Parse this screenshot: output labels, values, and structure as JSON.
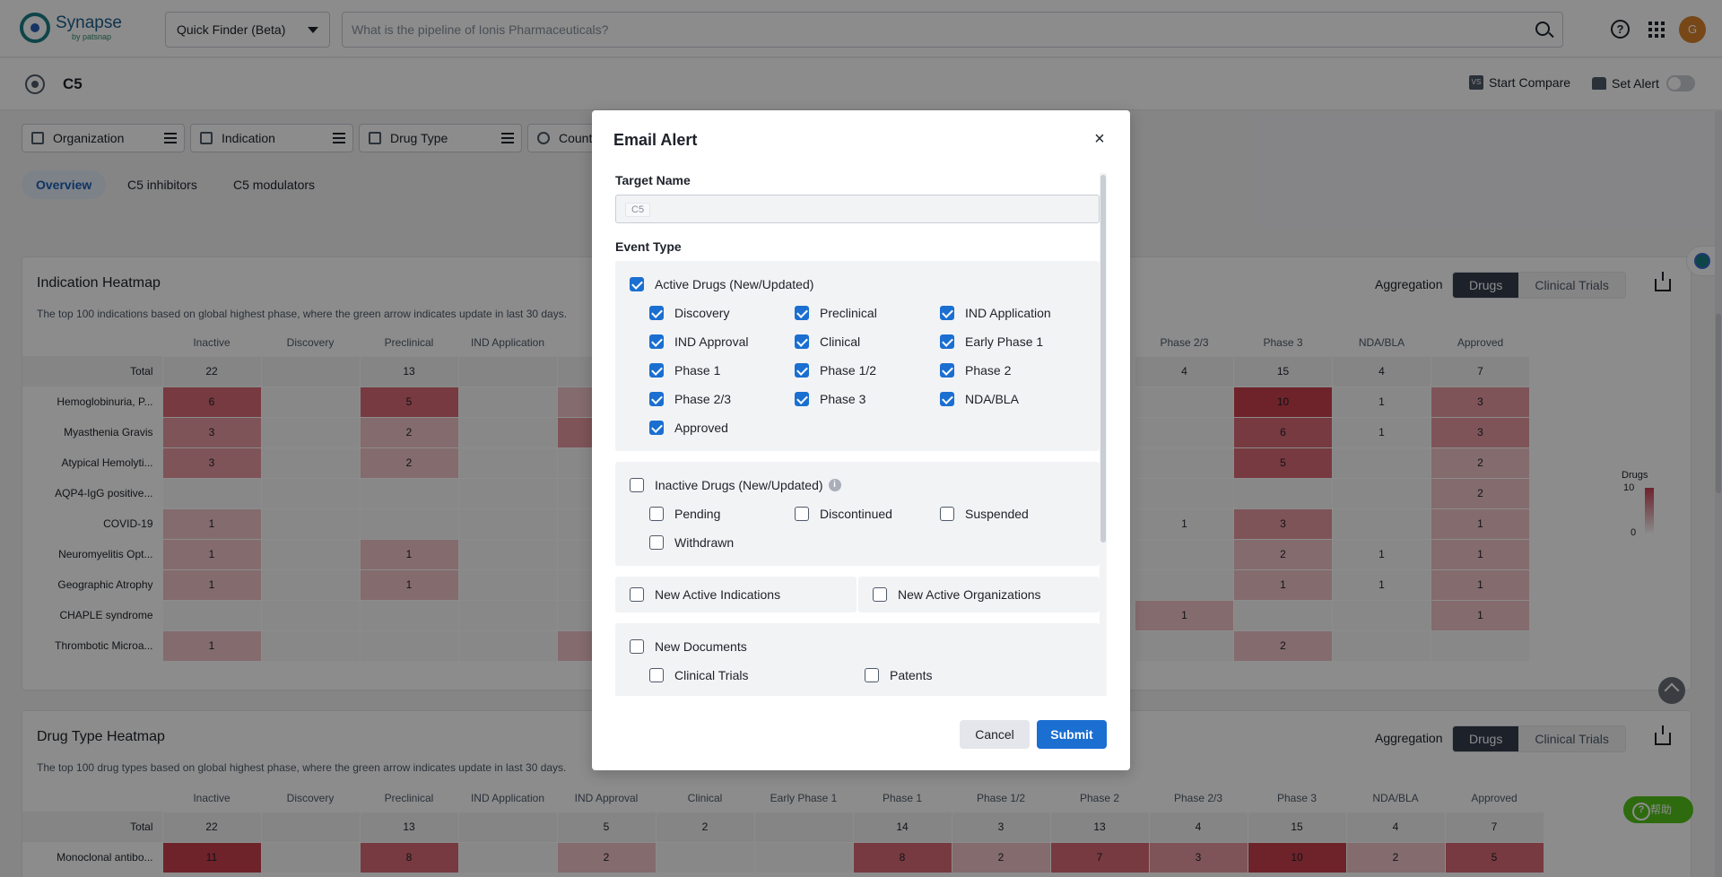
{
  "app": {
    "name": "Synapse",
    "sub": "by patsnap"
  },
  "header": {
    "finder_label": "Quick Finder (Beta)",
    "search_placeholder": "What is the pipeline of Ionis Pharmaceuticals?",
    "avatar_initial": "G"
  },
  "target": {
    "title": "C5",
    "start_compare": "Start Compare",
    "set_alert": "Set Alert",
    "compare_badge": "VS"
  },
  "filters": [
    "Organization",
    "Indication",
    "Drug Type",
    "Country/Location"
  ],
  "tabs": [
    "Overview",
    "C5 inhibitors",
    "C5 modulators"
  ],
  "indication_heatmap": {
    "title": "Indication Heatmap",
    "description": "The top 100 indications based on global highest phase, where the green arrow indicates update in last 30 days.",
    "aggregation_label": "Aggregation",
    "toggle": [
      "Drugs",
      "Clinical Trials"
    ],
    "columns": [
      "Inactive",
      "Discovery",
      "Preclinical",
      "IND Application",
      "IND Approval",
      "Clinical",
      "Early Phase 1",
      "Phase 1",
      "Phase 1/2",
      "Phase 2",
      "Phase 2/3",
      "Phase 3",
      "NDA/BLA",
      "Approved"
    ],
    "visible_col_labels": [
      "Inactive",
      "Discovery",
      "Preclinical",
      "IND Application",
      "IND",
      "Phase 2/3",
      "Phase 3",
      "NDA/BLA",
      "Approved"
    ],
    "rows": [
      {
        "label": "Total",
        "left": [
          "22",
          "",
          "13",
          "",
          ""
        ],
        "right": [
          "4",
          "15",
          "4",
          "7"
        ]
      },
      {
        "label": "Hemoglobinuria, P...",
        "left": [
          "6",
          "",
          "5",
          "",
          ""
        ],
        "right": [
          "",
          "10",
          "1",
          "3"
        ]
      },
      {
        "label": "Myasthenia Gravis",
        "left": [
          "3",
          "",
          "2",
          "",
          ""
        ],
        "right": [
          "",
          "6",
          "1",
          "3"
        ]
      },
      {
        "label": "Atypical Hemolyti...",
        "left": [
          "3",
          "",
          "2",
          "",
          ""
        ],
        "right": [
          "",
          "5",
          "",
          "2"
        ]
      },
      {
        "label": "AQP4-IgG positive...",
        "left": [
          "",
          "",
          "",
          "",
          ""
        ],
        "right": [
          "",
          "",
          "",
          "2"
        ]
      },
      {
        "label": "COVID-19",
        "left": [
          "1",
          "",
          "",
          "",
          ""
        ],
        "right": [
          "1",
          "3",
          "",
          "1"
        ]
      },
      {
        "label": "Neuromyelitis Opt...",
        "left": [
          "1",
          "",
          "1",
          "",
          ""
        ],
        "right": [
          "",
          "2",
          "1",
          "1"
        ]
      },
      {
        "label": "Geographic Atrophy",
        "left": [
          "1",
          "",
          "1",
          "",
          ""
        ],
        "right": [
          "",
          "1",
          "1",
          "1"
        ]
      },
      {
        "label": "CHAPLE syndrome",
        "left": [
          "",
          "",
          "",
          "",
          ""
        ],
        "right": [
          "1",
          "",
          "",
          "1"
        ]
      },
      {
        "label": "Thrombotic Microa...",
        "left": [
          "1",
          "",
          "",
          "",
          ""
        ],
        "right": [
          "",
          "2",
          "",
          ""
        ]
      }
    ],
    "legend_title": "Drugs",
    "legend_max": "10",
    "legend_min": "0"
  },
  "drug_type_heatmap": {
    "title": "Drug Type Heatmap",
    "description": "The top 100 drug types based on global highest phase, where the green arrow indicates update in last 30 days.",
    "aggregation_label": "Aggregation",
    "toggle": [
      "Drugs",
      "Clinical Trials"
    ],
    "columns": [
      "Inactive",
      "Discovery",
      "Preclinical",
      "IND Application",
      "IND Approval",
      "Clinical",
      "Early Phase 1",
      "Phase 1",
      "Phase 1/2",
      "Phase 2",
      "Phase 2/3",
      "Phase 3",
      "NDA/BLA",
      "Approved"
    ],
    "rows": [
      {
        "label": "Total",
        "values": [
          "22",
          "",
          "13",
          "",
          "5",
          "2",
          "",
          "14",
          "3",
          "13",
          "4",
          "15",
          "4",
          "7"
        ]
      },
      {
        "label": "Monoclonal antibo...",
        "values": [
          "11",
          "",
          "8",
          "",
          "2",
          "",
          "",
          "8",
          "2",
          "7",
          "3",
          "10",
          "2",
          "5"
        ]
      }
    ]
  },
  "help_chip": "帮助",
  "modal": {
    "title": "Email Alert",
    "target_name_label": "Target Name",
    "target_tag": "C5",
    "event_type_label": "Event Type",
    "active_drugs": {
      "label": "Active Drugs (New/Updated)",
      "checked": true,
      "options": [
        {
          "label": "Discovery",
          "checked": true
        },
        {
          "label": "Preclinical",
          "checked": true
        },
        {
          "label": "IND Application",
          "checked": true
        },
        {
          "label": "IND Approval",
          "checked": true
        },
        {
          "label": "Clinical",
          "checked": true
        },
        {
          "label": "Early Phase 1",
          "checked": true
        },
        {
          "label": "Phase 1",
          "checked": true
        },
        {
          "label": "Phase 1/2",
          "checked": true
        },
        {
          "label": "Phase 2",
          "checked": true
        },
        {
          "label": "Phase 2/3",
          "checked": true
        },
        {
          "label": "Phase 3",
          "checked": true
        },
        {
          "label": "NDA/BLA",
          "checked": true
        },
        {
          "label": "Approved",
          "checked": true
        }
      ]
    },
    "inactive_drugs": {
      "label": "Inactive Drugs (New/Updated)",
      "checked": false,
      "options": [
        {
          "label": "Pending",
          "checked": false
        },
        {
          "label": "Discontinued",
          "checked": false
        },
        {
          "label": "Suspended",
          "checked": false
        },
        {
          "label": "Withdrawn",
          "checked": false
        }
      ]
    },
    "new_active_indications": "New Active Indications",
    "new_active_organizations": "New Active Organizations",
    "new_documents": {
      "label": "New Documents",
      "options": [
        {
          "label": "Clinical Trials",
          "checked": false
        },
        {
          "label": "Patents",
          "checked": false
        }
      ]
    },
    "cancel_label": "Cancel",
    "submit_label": "Submit"
  }
}
